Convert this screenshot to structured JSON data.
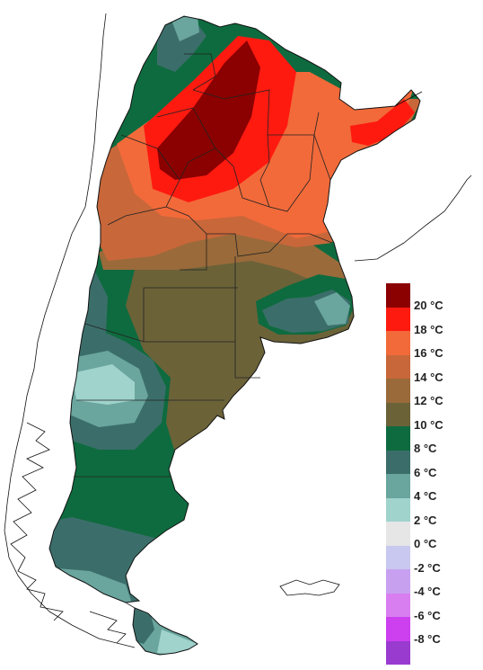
{
  "legend": {
    "items": [
      {
        "label": "20 °C",
        "color": "#8b0000"
      },
      {
        "label": "18 °C",
        "color": "#ff1a10"
      },
      {
        "label": "16 °C",
        "color": "#f26a3a"
      },
      {
        "label": "14 °C",
        "color": "#c8673a"
      },
      {
        "label": "12 °C",
        "color": "#9a6a3a"
      },
      {
        "label": "10 °C",
        "color": "#6b6238"
      },
      {
        "label": "8 °C",
        "color": "#0e6b3f"
      },
      {
        "label": "6 °C",
        "color": "#3b6e6a"
      },
      {
        "label": "4 °C",
        "color": "#6aa59e"
      },
      {
        "label": "2 °C",
        "color": "#9fd3cc"
      },
      {
        "label": "0 °C",
        "color": "#e6e6e6"
      },
      {
        "label": "-2 °C",
        "color": "#c8c8f0"
      },
      {
        "label": "-4 °C",
        "color": "#c8a0f0"
      },
      {
        "label": "-6 °C",
        "color": "#d87ef0"
      },
      {
        "label": "-8 °C",
        "color": "#cc40f0"
      },
      {
        "label": "",
        "color": "#9a3bd0"
      }
    ]
  }
}
